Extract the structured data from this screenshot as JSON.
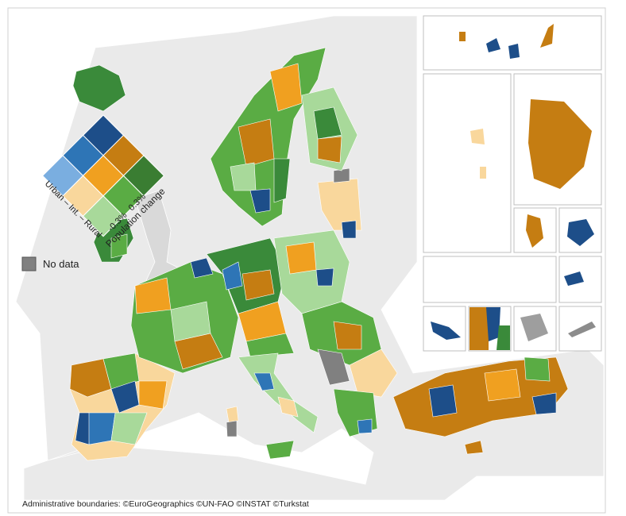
{
  "legend": {
    "urban_rural_label": "Urban – Int. – Rural",
    "population_ticks": [
      "-0.3%",
      "0.3%"
    ],
    "population_label": "Population change",
    "no_data": "No data"
  },
  "footer": {
    "attribution": "Administrative boundaries: ©EuroGeographics ©UN-FAO ©INSTAT ©Turkstat"
  }
}
